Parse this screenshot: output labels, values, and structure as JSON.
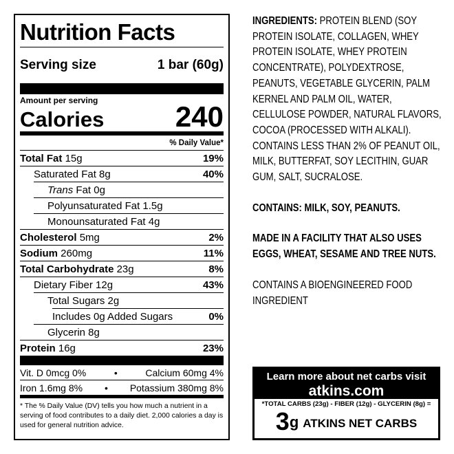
{
  "nutrition_facts": {
    "title": "Nutrition Facts",
    "serving_size_label": "Serving size",
    "serving_size": "1 bar (60g)",
    "amount_per_serving": "Amount per serving",
    "calories_label": "Calories",
    "calories": 240,
    "daily_value_header": "% Daily Value*",
    "rows": [
      {
        "name": "Total Fat",
        "amount": "15g",
        "dv": "19%"
      },
      {
        "name": "Saturated Fat 8g",
        "dv": "40%"
      },
      {
        "prefix": "Trans",
        "name": "Fat 0g"
      },
      {
        "name": "Polyunsaturated Fat 1.5g"
      },
      {
        "name": "Monounsaturated Fat 4g"
      },
      {
        "name": "Cholesterol",
        "amount": "5mg",
        "dv": "2%"
      },
      {
        "name": "Sodium",
        "amount": "260mg",
        "dv": "11%"
      },
      {
        "name": "Total Carbohydrate",
        "amount": "23g",
        "dv": "8%"
      },
      {
        "name": "Dietary Fiber 12g",
        "dv": "43%"
      },
      {
        "name": "Total Sugars 2g"
      },
      {
        "name": "Includes 0g Added Sugars",
        "dv": "0%"
      },
      {
        "name": "Glycerin 8g"
      },
      {
        "name": "Protein",
        "amount": "16g",
        "dv": "23%"
      }
    ],
    "vitamins": [
      [
        "Vit. D 0mcg 0%",
        "Calcium 60mg 4%"
      ],
      [
        "Iron 1.6mg 8%",
        "Potassium 380mg 8%"
      ]
    ],
    "footnote": "* The % Daily Value (DV) tells you how much a nutrient in a serving of food contributes to a daily diet. 2,000 calories a day is used for general nutrition advice."
  },
  "ingredients": {
    "label": "INGREDIENTS:",
    "text": "PROTEIN BLEND (SOY PROTEIN ISOLATE, COLLAGEN, WHEY PROTEIN ISOLATE, WHEY PROTEIN CONCENTRATE), POLYDEXTROSE, PEANUTS, VEGETABLE GLYCERIN, PALM KERNEL AND PALM OIL, WATER, CELLULOSE POWDER, NATURAL FLAVORS, COCOA (PROCESSED WITH ALKALI). CONTAINS LESS THAN 2% OF PEANUT OIL, MILK, BUTTERFAT, SOY LECITHIN, GUAR GUM, SALT, SUCRALOSE.",
    "contains": "CONTAINS: MILK, SOY, PEANUTS.",
    "facility": "MADE IN A FACILITY THAT ALSO USES EGGS, WHEAT, SESAME AND TREE NUTS.",
    "bioengineered": "CONTAINS A BIOENGINEERED FOOD INGREDIENT"
  },
  "net_carbs_box": {
    "line1": "Learn more about net carbs visit",
    "website": "atkins.com",
    "formula": "*TOTAL CARBS (23g) - FIBER (12g) - GLYCERIN (8g) =",
    "value": 3,
    "unit": "g",
    "label": "ATKINS NET CARBS"
  }
}
